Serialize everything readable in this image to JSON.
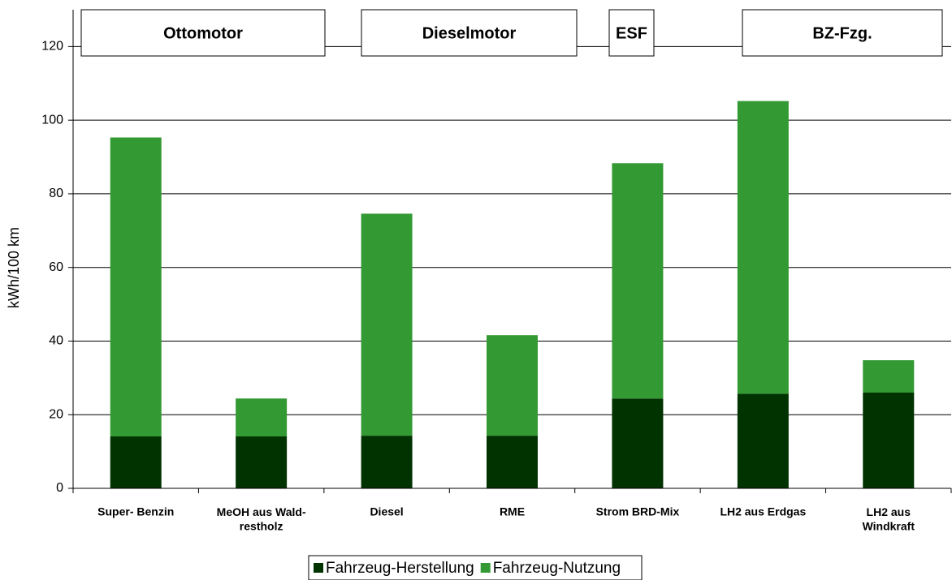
{
  "chart_data": {
    "type": "stacked_bar",
    "y_label": "kWh/100 km",
    "categories": [
      "Super- Benzin",
      "MeOH aus Wald-\nrestholz",
      "Diesel",
      "RME",
      "Strom BRD-Mix",
      "LH2 aus Erdgas",
      "LH2 aus\nWindkraft"
    ],
    "series": [
      {
        "name": "Fahrzeug-Herstellung",
        "color": "#003300",
        "values": [
          14.1,
          14.1,
          14.3,
          14.3,
          24.4,
          25.7,
          26.0
        ]
      },
      {
        "name": "Fahrzeug-Nutzung",
        "color": "#339933",
        "values": [
          81.2,
          10.3,
          60.3,
          27.3,
          63.9,
          79.5,
          8.8
        ]
      }
    ],
    "groups": [
      "Ottomotor",
      "Dieselmotor",
      "ESF",
      "BZ-Fzg."
    ],
    "ylim": [
      0,
      130
    ],
    "yticks": [
      0,
      20,
      40,
      60,
      80,
      100,
      120
    ],
    "grid": true,
    "legend": "bottom"
  }
}
